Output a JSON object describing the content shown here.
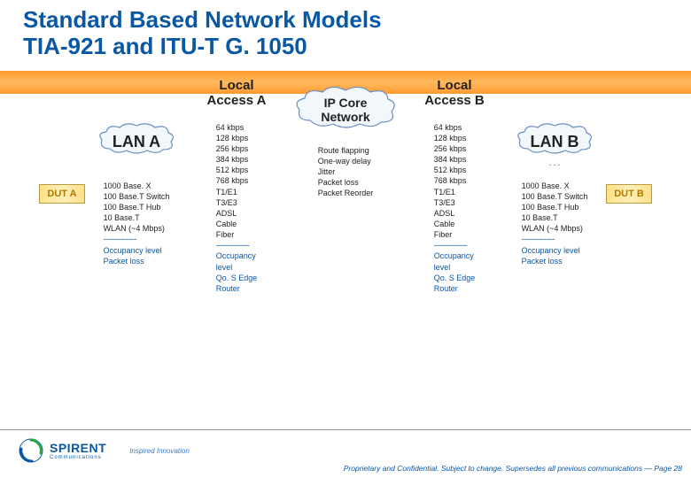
{
  "title_line1": "Standard Based Network Models",
  "title_line2": "TIA-921 and ITU-T G. 1050",
  "headers": {
    "local_access_a": "Local\nAccess A",
    "ip_core": "IP Core\nNetwork",
    "local_access_b": "Local\nAccess B",
    "lan_a": "LAN A",
    "lan_b": "LAN B",
    "dut_a": "DUT A",
    "dut_b": "DUT B"
  },
  "columns": {
    "lan_a": [
      "1000 Base. X",
      "100 Base.T Switch",
      "100 Base.T Hub",
      "10 Base.T",
      "WLAN (~4 Mbps)",
      "---------------",
      "Occupancy level",
      "Packet loss"
    ],
    "access_a": [
      "64 kbps",
      "128 kbps",
      "256 kbps",
      "384 kbps",
      "512 kbps",
      "768 kbps",
      "T1/E1",
      "T3/E3",
      "ADSL",
      "Cable",
      "Fiber",
      "---------------",
      "Occupancy",
      "level",
      "Qo. S Edge",
      "Router"
    ],
    "core": [
      "Route flapping",
      "One-way delay",
      "Jitter",
      "Packet loss",
      "Packet Reorder"
    ],
    "access_b": [
      "64 kbps",
      "128 kbps",
      "256 kbps",
      "384 kbps",
      "512 kbps",
      "768 kbps",
      "T1/E1",
      "T3/E3",
      "ADSL",
      "Cable",
      "Fiber",
      "---------------",
      "Occupancy",
      "level",
      "Qo. S Edge",
      "Router"
    ],
    "lan_b": [
      "1000 Base. X",
      "100 Base.T Switch",
      "100 Base.T Hub",
      "10 Base.T",
      "WLAN (~4 Mbps)",
      "---------------",
      "Occupancy level",
      "Packet loss"
    ]
  },
  "lan_b_prefix": ". . .",
  "colors": {
    "title": "#0a57a4",
    "blue_text": "#0a57a4",
    "orange_band": "#ff9a2e",
    "dut_bg": "#fde08a",
    "dut_border": "#b89b3e",
    "dut_text": "#b07b00",
    "cloud_stroke": "#6a8fbf",
    "cloud_fill_light": "#f2f7fc",
    "cloud_fill_shadow": "#cfe0f0"
  },
  "footer": "Proprietary and Confidential. Subject to change. Supersedes all previous communications — Page 28",
  "logo": {
    "name": "SPIRENT",
    "sub": "Communications",
    "tagline": "Inspired Innovation"
  },
  "fontsizes": {
    "title": 26,
    "header": 15,
    "lan": 18,
    "list": 9,
    "dut": 11,
    "footer": 8.5
  }
}
